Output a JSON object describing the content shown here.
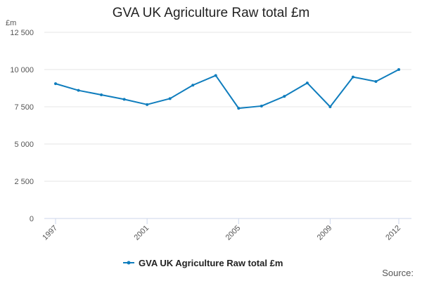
{
  "chart_data": {
    "type": "line",
    "title": "GVA UK Agriculture Raw total £m",
    "ylabel": "£m",
    "xlabel": "",
    "ylim": [
      0,
      12500
    ],
    "xlim": [
      1997,
      2012
    ],
    "yticks": [
      0,
      2500,
      5000,
      7500,
      10000,
      12500
    ],
    "ytick_labels": [
      "0",
      "2 500",
      "5 000",
      "7 500",
      "10 000",
      "12 500"
    ],
    "xticks": [
      1997,
      2001,
      2005,
      2009,
      2012
    ],
    "xtick_labels": [
      "1997",
      "2001",
      "2005",
      "2009",
      "2012"
    ],
    "grid": "horizontal",
    "legend_position": "bottom",
    "series": [
      {
        "name": "GVA UK Agriculture Raw total £m",
        "color": "#0f7dbd",
        "x": [
          1997,
          1998,
          1999,
          2000,
          2001,
          2002,
          2003,
          2004,
          2005,
          2006,
          2007,
          2008,
          2009,
          2010,
          2011,
          2012
        ],
        "values": [
          9050,
          8600,
          8300,
          8000,
          7650,
          8050,
          8950,
          9600,
          7400,
          7550,
          8200,
          9100,
          7500,
          9500,
          9200,
          10000
        ]
      }
    ]
  },
  "footer": {
    "source_label": "Source:"
  }
}
